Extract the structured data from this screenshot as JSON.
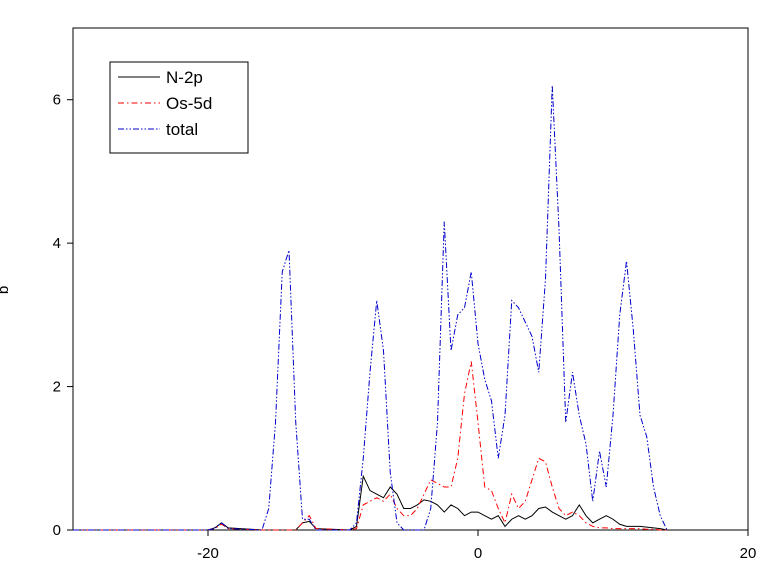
{
  "chart_data": {
    "type": "line",
    "ylabel": "b",
    "x": [
      -30,
      -20,
      -19.5,
      -19,
      -18.5,
      -16,
      -15.5,
      -15,
      -14.5,
      -14,
      -13.5,
      -13,
      -12.5,
      -12,
      -9.5,
      -9,
      -8.5,
      -8,
      -7.5,
      -7,
      -6.5,
      -6,
      -5.5,
      -5,
      -4.5,
      -4,
      -3.5,
      -3,
      -2.5,
      -2,
      -1.5,
      -1,
      -0.5,
      0,
      0.5,
      1,
      1.5,
      2,
      2.5,
      3,
      3.5,
      4,
      4.5,
      5,
      5.5,
      6,
      6.5,
      7,
      7.5,
      8,
      8.5,
      9,
      9.5,
      10,
      10.5,
      11,
      11.5,
      12,
      12.5,
      13,
      13.5,
      14
    ],
    "series": [
      {
        "name": "N-2p",
        "color": "#000000",
        "style": "solid",
        "values": [
          0,
          0,
          0.03,
          0.1,
          0.03,
          0,
          0,
          0,
          0,
          0,
          0,
          0.1,
          0.12,
          0.02,
          0,
          0.05,
          0.75,
          0.55,
          0.5,
          0.45,
          0.6,
          0.5,
          0.3,
          0.3,
          0.35,
          0.42,
          0.4,
          0.35,
          0.25,
          0.35,
          0.3,
          0.2,
          0.25,
          0.25,
          0.2,
          0.15,
          0.2,
          0.05,
          0.15,
          0.2,
          0.15,
          0.2,
          0.3,
          0.32,
          0.25,
          0.2,
          0.15,
          0.2,
          0.35,
          0.2,
          0.1,
          0.15,
          0.2,
          0.15,
          0.08,
          0.05,
          0.05,
          0.05,
          0.04,
          0.03,
          0.02,
          0
        ]
      },
      {
        "name": "Os-5d",
        "color": "#ff0000",
        "style": "dash-dot",
        "values": [
          0,
          0,
          0.02,
          0.08,
          0.02,
          0,
          0,
          0,
          0,
          0,
          0,
          0.1,
          0.2,
          0.02,
          0,
          0.02,
          0.35,
          0.4,
          0.45,
          0.4,
          0.5,
          0.3,
          0.2,
          0.2,
          0.3,
          0.5,
          0.7,
          0.65,
          0.6,
          0.6,
          1.0,
          1.9,
          2.35,
          1.5,
          0.6,
          0.55,
          0.3,
          0.1,
          0.5,
          0.3,
          0.4,
          0.7,
          1.0,
          0.95,
          0.6,
          0.3,
          0.2,
          0.25,
          0.2,
          0.1,
          0.05,
          0.03,
          0.03,
          0.02,
          0.02,
          0.02,
          0.02,
          0.02,
          0.01,
          0.01,
          0,
          0
        ]
      },
      {
        "name": "total",
        "color": "#0000cc",
        "style": "dash-dot-dot",
        "values": [
          0,
          0,
          0.02,
          0.1,
          0.02,
          0,
          0.3,
          1.5,
          3.6,
          3.9,
          1.5,
          0.15,
          0.15,
          0,
          0,
          0.1,
          1.0,
          2.2,
          3.2,
          2.5,
          0.8,
          0.1,
          0,
          0,
          0,
          0,
          0.3,
          1.5,
          4.3,
          2.5,
          3.0,
          3.1,
          3.6,
          2.6,
          2.1,
          1.8,
          1.0,
          1.6,
          3.2,
          3.1,
          2.9,
          2.7,
          2.2,
          3.5,
          6.2,
          4.2,
          1.5,
          2.2,
          1.6,
          1.2,
          0.4,
          1.1,
          0.6,
          1.6,
          3.0,
          3.75,
          2.8,
          1.6,
          1.3,
          0.6,
          0.2,
          0
        ]
      }
    ],
    "xlim": [
      -30,
      20
    ],
    "xticks": [
      -20,
      0,
      20
    ],
    "ylim": [
      0,
      7
    ],
    "yticks": [
      0,
      2,
      4,
      6
    ],
    "legend": "upper left"
  }
}
